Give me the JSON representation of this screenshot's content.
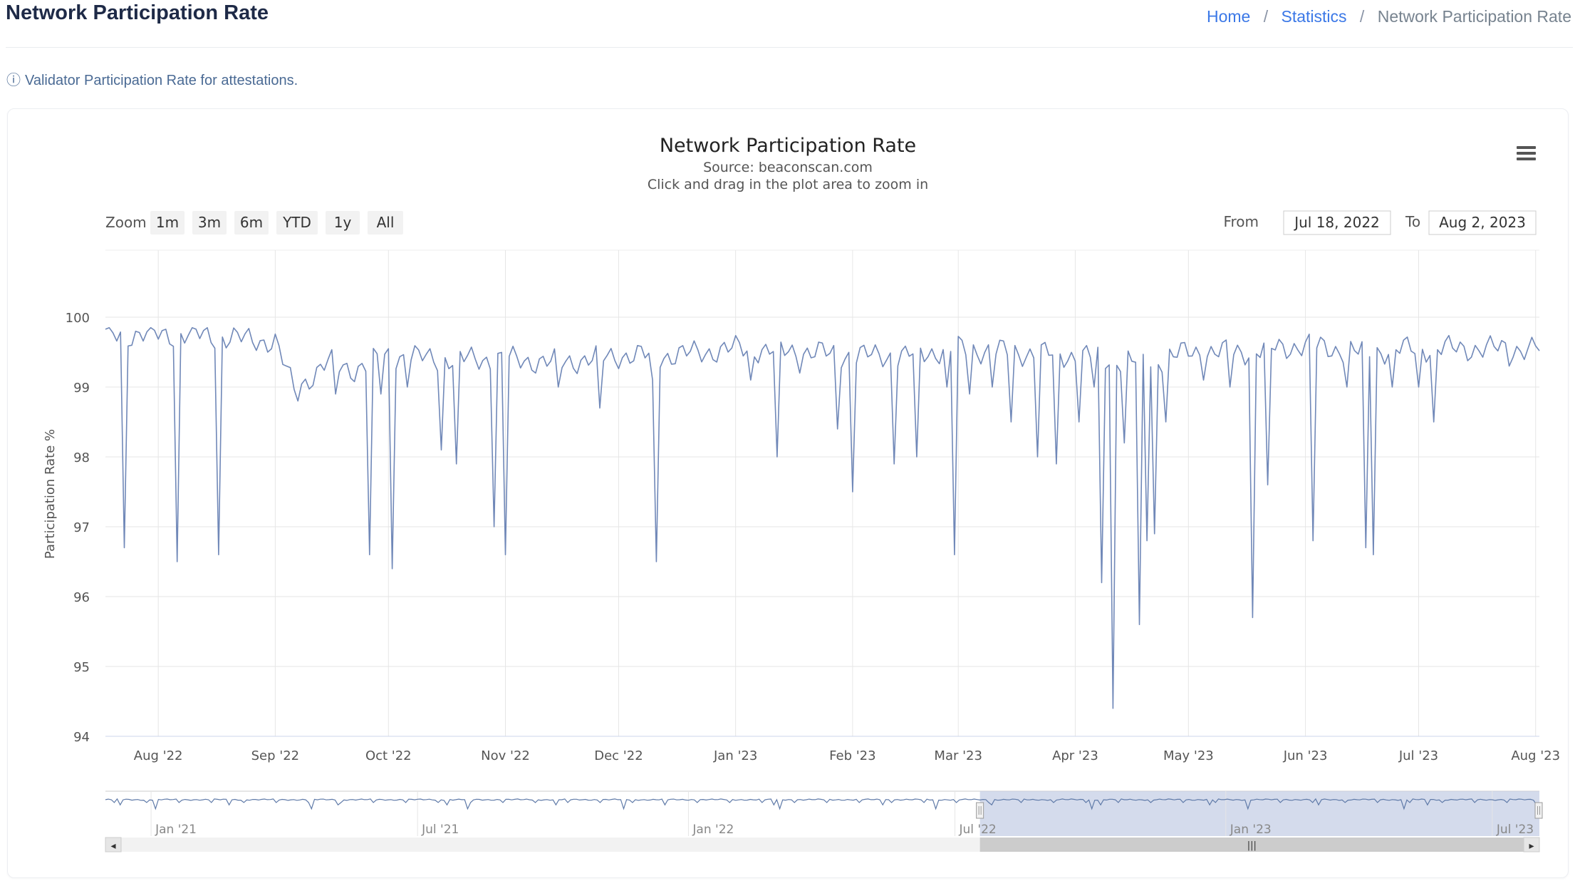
{
  "header": {
    "title": "Network Participation Rate",
    "breadcrumb": {
      "home": "Home",
      "separator": "/",
      "statistics": "Statistics",
      "current": "Network Participation Rate"
    }
  },
  "info": {
    "icon": "info-circle-icon",
    "glyph": "ⓘ",
    "text": "Validator Participation Rate for attestations."
  },
  "chart_data": {
    "type": "line",
    "title": "Network Participation Rate",
    "subtitle_source": "Source: beaconscan.com",
    "subtitle_hint": "Click and drag in the plot area to zoom in",
    "ylabel": "Participation Rate %",
    "ylim": [
      94,
      100
    ],
    "yticks": [
      94,
      95,
      96,
      97,
      98,
      99,
      100
    ],
    "xlim": [
      "2022-07-18",
      "2023-08-02"
    ],
    "xticks": [
      {
        "date": "2022-08-01",
        "label": "Aug '22"
      },
      {
        "date": "2022-09-01",
        "label": "Sep '22"
      },
      {
        "date": "2022-10-01",
        "label": "Oct '22"
      },
      {
        "date": "2022-11-01",
        "label": "Nov '22"
      },
      {
        "date": "2022-12-01",
        "label": "Dec '22"
      },
      {
        "date": "2023-01-01",
        "label": "Jan '23"
      },
      {
        "date": "2023-02-01",
        "label": "Feb '23"
      },
      {
        "date": "2023-03-01",
        "label": "Mar '23"
      },
      {
        "date": "2023-04-01",
        "label": "Apr '23"
      },
      {
        "date": "2023-05-01",
        "label": "May '23"
      },
      {
        "date": "2023-06-01",
        "label": "Jun '23"
      },
      {
        "date": "2023-07-01",
        "label": "Jul '23"
      },
      {
        "date": "2023-08-01",
        "label": "Aug '23"
      }
    ],
    "line_color": "#7088b8",
    "grid": true,
    "legend": "none",
    "baseline": [
      [
        "2022-07-18",
        99.8
      ],
      [
        "2022-07-25",
        99.8
      ],
      [
        "2022-08-10",
        99.8
      ],
      [
        "2022-08-20",
        99.75
      ],
      [
        "2022-09-01",
        99.7
      ],
      [
        "2022-09-06",
        99.0
      ],
      [
        "2022-09-15",
        99.4
      ],
      [
        "2022-09-22",
        99.3
      ],
      [
        "2022-10-01",
        99.5
      ],
      [
        "2022-10-15",
        99.45
      ],
      [
        "2022-11-01",
        99.45
      ],
      [
        "2022-11-15",
        99.4
      ],
      [
        "2022-12-01",
        99.5
      ],
      [
        "2022-12-15",
        99.5
      ],
      [
        "2023-01-01",
        99.6
      ],
      [
        "2023-01-20",
        99.55
      ],
      [
        "2023-02-01",
        99.5
      ],
      [
        "2023-02-15",
        99.5
      ],
      [
        "2023-03-01",
        99.6
      ],
      [
        "2023-03-15",
        99.55
      ],
      [
        "2023-04-01",
        99.5
      ],
      [
        "2023-04-20",
        99.4
      ],
      [
        "2023-05-01",
        99.55
      ],
      [
        "2023-05-15",
        99.55
      ],
      [
        "2023-06-01",
        99.65
      ],
      [
        "2023-06-15",
        99.55
      ],
      [
        "2023-07-01",
        99.6
      ],
      [
        "2023-07-15",
        99.6
      ],
      [
        "2023-08-02",
        99.6
      ]
    ],
    "dips": [
      [
        "2022-07-23",
        96.7
      ],
      [
        "2022-08-06",
        96.5
      ],
      [
        "2022-08-17",
        96.6
      ],
      [
        "2022-09-07",
        98.8
      ],
      [
        "2022-09-17",
        98.9
      ],
      [
        "2022-09-26",
        96.6
      ],
      [
        "2022-09-29",
        98.9
      ],
      [
        "2022-10-02",
        96.4
      ],
      [
        "2022-10-06",
        99.0
      ],
      [
        "2022-10-15",
        98.1
      ],
      [
        "2022-10-19",
        97.9
      ],
      [
        "2022-10-29",
        97.0
      ],
      [
        "2022-11-01",
        96.6
      ],
      [
        "2022-11-15",
        99.0
      ],
      [
        "2022-11-26",
        98.7
      ],
      [
        "2022-12-10",
        99.1
      ],
      [
        "2022-12-11",
        96.5
      ],
      [
        "2023-01-05",
        99.1
      ],
      [
        "2023-01-12",
        98.0
      ],
      [
        "2023-01-18",
        99.2
      ],
      [
        "2023-01-28",
        98.4
      ],
      [
        "2023-02-01",
        97.5
      ],
      [
        "2023-02-12",
        97.9
      ],
      [
        "2023-02-18",
        98.0
      ],
      [
        "2023-02-26",
        99.0
      ],
      [
        "2023-02-28",
        96.6
      ],
      [
        "2023-03-04",
        98.9
      ],
      [
        "2023-03-10",
        99.0
      ],
      [
        "2023-03-15",
        98.5
      ],
      [
        "2023-03-22",
        98.0
      ],
      [
        "2023-03-27",
        97.9
      ],
      [
        "2023-04-02",
        98.5
      ],
      [
        "2023-04-06",
        99.0
      ],
      [
        "2023-04-08",
        96.2
      ],
      [
        "2023-04-11",
        94.4
      ],
      [
        "2023-04-14",
        98.2
      ],
      [
        "2023-04-18",
        95.6
      ],
      [
        "2023-04-20",
        96.8
      ],
      [
        "2023-04-22",
        96.9
      ],
      [
        "2023-04-25",
        98.5
      ],
      [
        "2023-05-05",
        99.1
      ],
      [
        "2023-05-12",
        99.0
      ],
      [
        "2023-05-18",
        95.7
      ],
      [
        "2023-05-22",
        97.6
      ],
      [
        "2023-06-03",
        96.8
      ],
      [
        "2023-06-12",
        99.0
      ],
      [
        "2023-06-17",
        96.7
      ],
      [
        "2023-06-19",
        96.6
      ],
      [
        "2023-06-24",
        99.0
      ],
      [
        "2023-07-01",
        99.0
      ],
      [
        "2023-07-05",
        98.5
      ],
      [
        "2023-07-25",
        99.3
      ]
    ],
    "navigator": {
      "xlim": [
        "2020-12-01",
        "2023-08-02"
      ],
      "selected": [
        "2022-07-18",
        "2023-08-02"
      ],
      "ticks": [
        {
          "date": "2021-01-01",
          "label": "Jan '21"
        },
        {
          "date": "2021-07-01",
          "label": "Jul '21"
        },
        {
          "date": "2022-01-01",
          "label": "Jan '22"
        },
        {
          "date": "2022-07-01",
          "label": "Jul '22"
        },
        {
          "date": "2023-01-01",
          "label": "Jan '23"
        },
        {
          "date": "2023-07-01",
          "label": "Jul '23"
        }
      ],
      "mask_color": "#c5cfe6"
    }
  },
  "range_selector": {
    "zoom_label": "Zoom",
    "buttons": [
      "1m",
      "3m",
      "6m",
      "YTD",
      "1y",
      "All"
    ],
    "from_label": "From",
    "from_value": "Jul 18, 2022",
    "to_label": "To",
    "to_value": "Aug 2, 2023"
  },
  "menu": {
    "icon": "hamburger-menu-icon"
  },
  "scrollbar": {
    "left_arrow": "◂",
    "right_arrow": "▸",
    "grip": "|||"
  }
}
